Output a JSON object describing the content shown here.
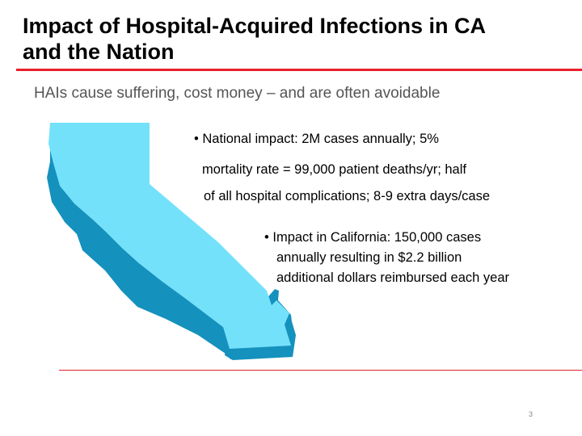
{
  "slide": {
    "title_line1": "Impact of Hospital-Acquired Infections in CA",
    "title_line2": "and the Nation",
    "subtitle": "HAIs cause suffering, cost money – and are often avoidable",
    "bullet1": {
      "line1": "• National impact:  2M cases annually; 5%",
      "line2": "mortality rate = 99,000 patient deaths/yr; half",
      "line3": "of all hospital complications; 8-9 extra days/case"
    },
    "bullet2": {
      "line1": "• Impact in California:  150,000 cases",
      "line2": "annually resulting in $2.2 billion",
      "line3": "additional dollars reimbursed each year"
    },
    "page_number": "3"
  },
  "colors": {
    "accent_red": "#e8202a",
    "map_top": "#74e1fb",
    "map_side": "#1591bd"
  },
  "icons": {
    "map": "california-map-icon"
  }
}
